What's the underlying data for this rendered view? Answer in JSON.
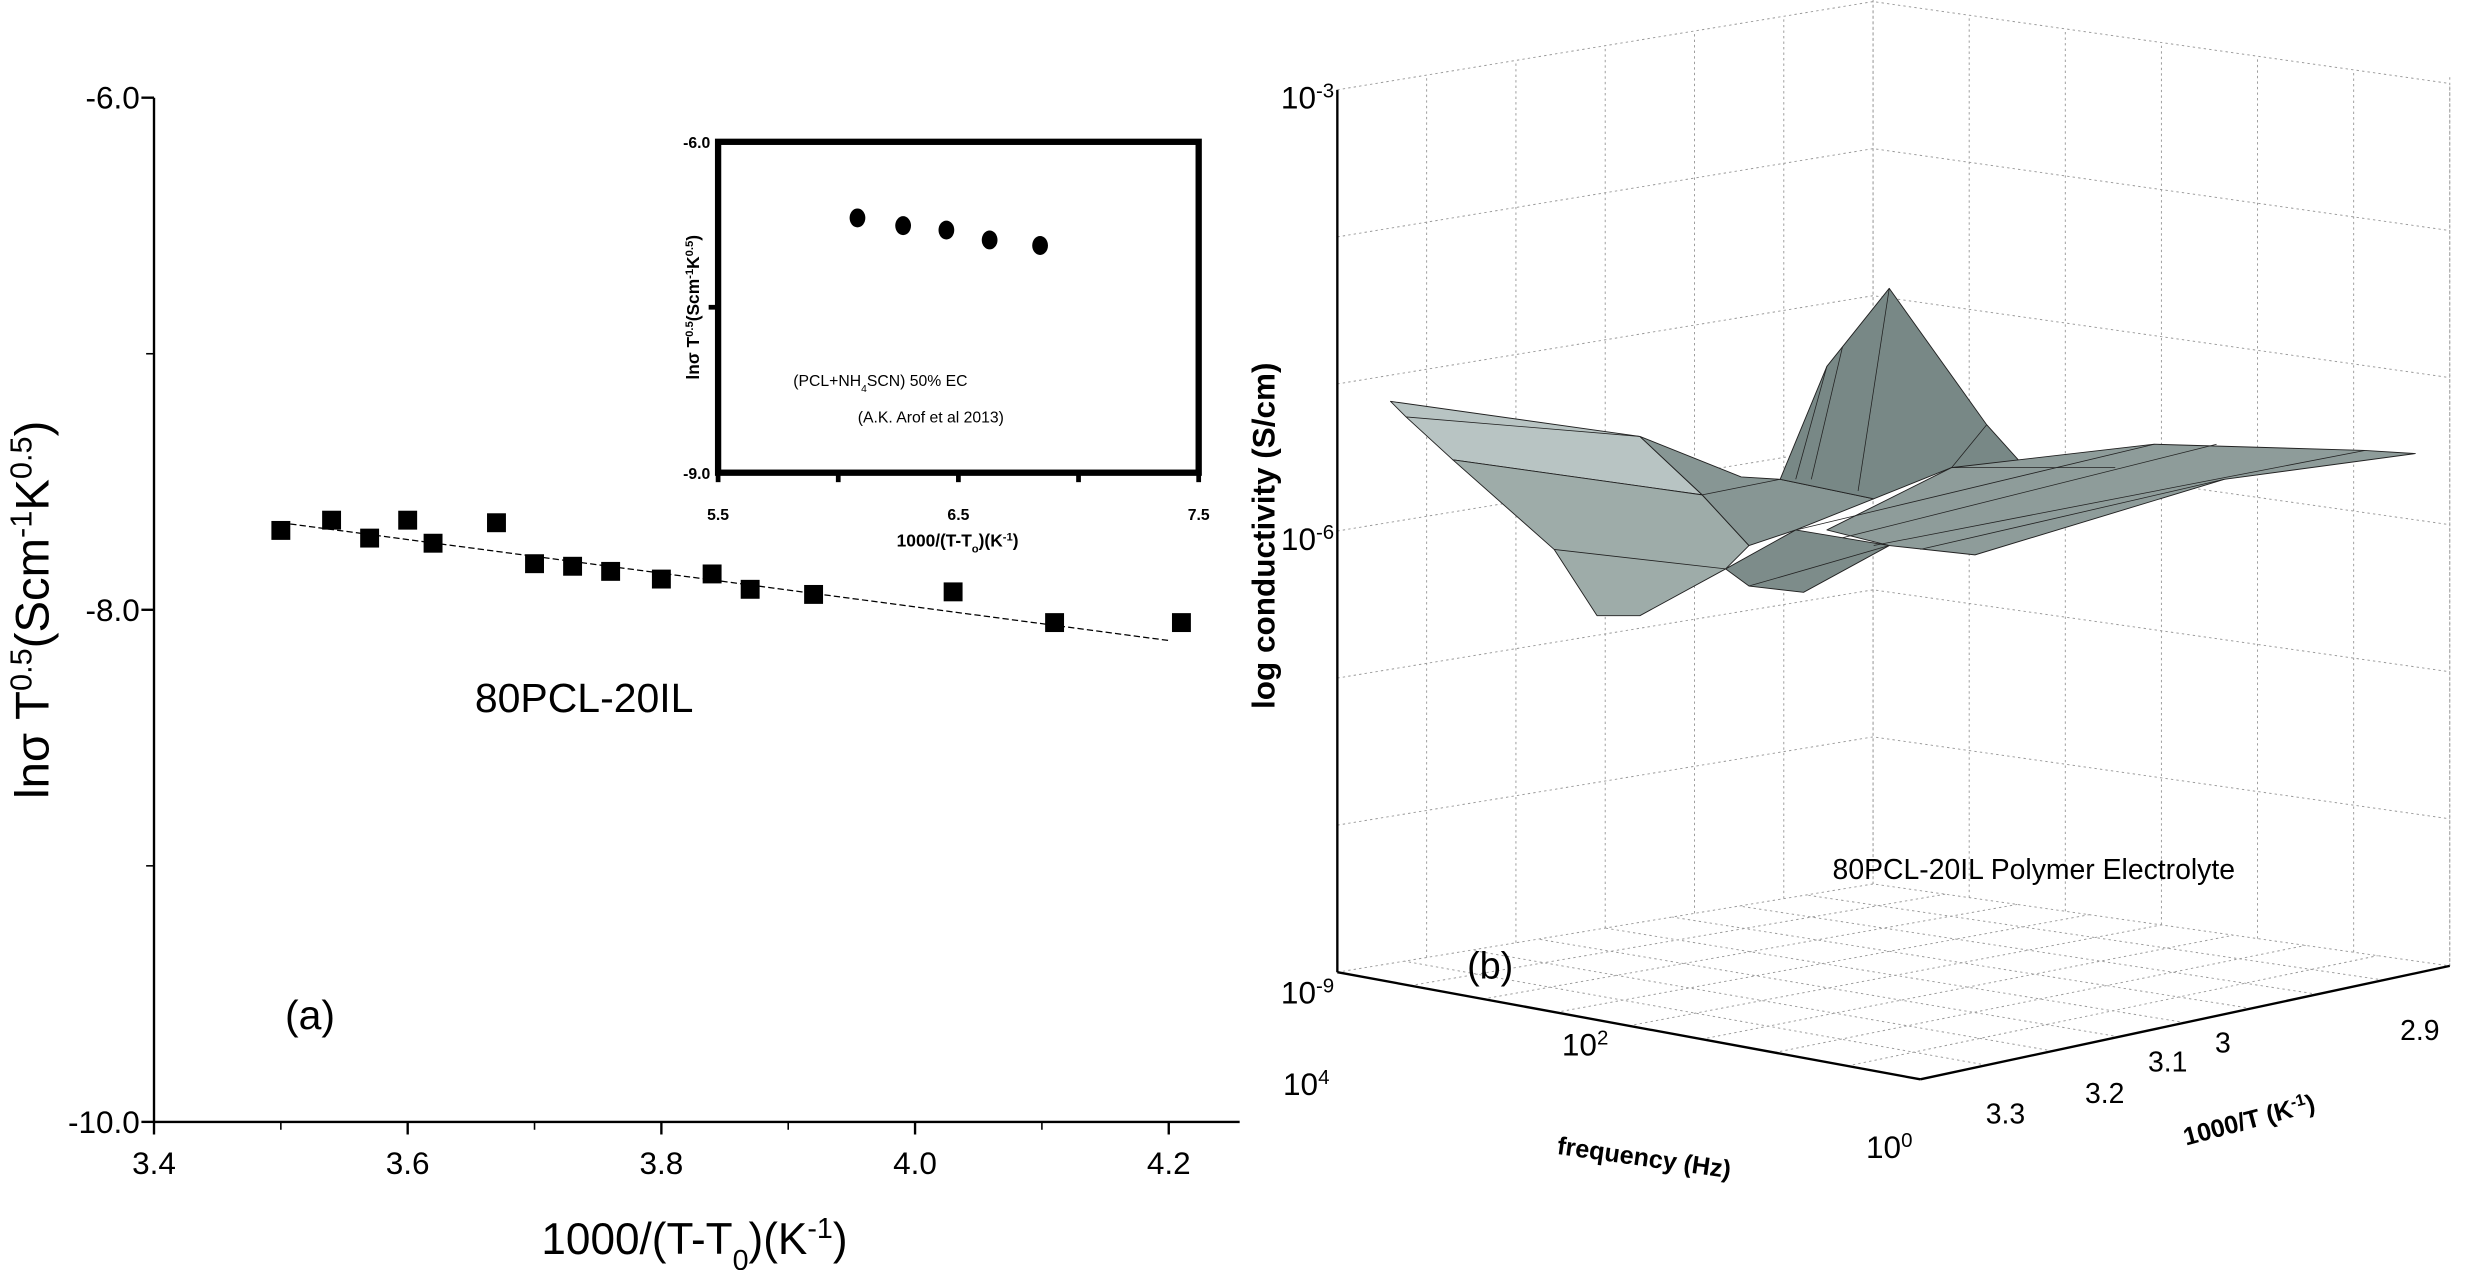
{
  "chart_data": [
    {
      "panel": "(a)",
      "type": "scatter",
      "title": "",
      "annotation": "80PCL-20IL",
      "xlabel": [
        [
          "1000/(T-T",
          ""
        ],
        [
          "0",
          "sub"
        ],
        [
          ")(K",
          ""
        ],
        [
          "-1",
          "sup"
        ],
        [
          ")",
          ""
        ]
      ],
      "ylabel": [
        [
          "lnσ T",
          ""
        ],
        [
          "0.5",
          "sup"
        ],
        [
          "(Scm",
          ""
        ],
        [
          "-1",
          "sup"
        ],
        [
          "K",
          ""
        ],
        [
          "0.5",
          "sup"
        ],
        [
          ")",
          ""
        ]
      ],
      "xlim": [
        3.4,
        4.25
      ],
      "ylim": [
        -10.0,
        -6.0
      ],
      "xticks": [
        "3.4",
        "3.6",
        "3.8",
        "4.0",
        "4.2"
      ],
      "xtick_values": [
        3.4,
        3.6,
        3.8,
        4.0,
        4.2
      ],
      "yticks": [
        "-6.0",
        "-8.0",
        "-10.0"
      ],
      "ytick_values": [
        -6.0,
        -8.0,
        -10.0
      ],
      "grid": false,
      "marker": "square",
      "x": [
        3.5,
        3.54,
        3.57,
        3.6,
        3.62,
        3.67,
        3.7,
        3.73,
        3.76,
        3.8,
        3.84,
        3.87,
        3.92,
        4.03,
        4.11,
        4.21
      ],
      "y": [
        -7.69,
        -7.65,
        -7.72,
        -7.65,
        -7.74,
        -7.66,
        -7.82,
        -7.83,
        -7.85,
        -7.88,
        -7.86,
        -7.92,
        -7.94,
        -7.93,
        -8.05,
        -8.05
      ],
      "fit_line": {
        "style": "dashed",
        "x": [
          3.5,
          4.2
        ],
        "y": [
          -7.66,
          -8.12
        ]
      }
    },
    {
      "panel": "inset",
      "type": "scatter",
      "annotation_lines": [
        [
          [
            "(PCL+NH",
            ""
          ],
          [
            "4",
            "sub"
          ],
          [
            "SCN) 50% EC",
            ""
          ]
        ],
        [
          [
            "(A.K. Arof et al 2013)",
            ""
          ]
        ]
      ],
      "xlabel": [
        [
          "1000/(T-T",
          ""
        ],
        [
          "o",
          "sub"
        ],
        [
          ")(K",
          ""
        ],
        [
          "-1",
          "sup"
        ],
        [
          ")",
          ""
        ]
      ],
      "ylabel": [
        [
          "lnσ T",
          ""
        ],
        [
          "0.5",
          "sup"
        ],
        [
          "(Scm",
          ""
        ],
        [
          "-1",
          "sup"
        ],
        [
          "K",
          ""
        ],
        [
          "0.5",
          "sup"
        ],
        [
          ")",
          ""
        ]
      ],
      "xlim": [
        5.5,
        7.5
      ],
      "ylim": [
        -9.0,
        -6.0
      ],
      "xticks": [
        "5.5",
        "6.5",
        "7.5"
      ],
      "xtick_values": [
        5.5,
        6.5,
        7.5
      ],
      "yticks": [
        "-6.0",
        "-9.0"
      ],
      "ytick_values": [
        -6.0,
        -9.0
      ],
      "marker": "circle",
      "x": [
        6.08,
        6.27,
        6.45,
        6.63,
        6.84
      ],
      "y": [
        -6.69,
        -6.76,
        -6.8,
        -6.89,
        -6.94
      ]
    },
    {
      "panel": "(b)",
      "type": "surface",
      "annotation": "80PCL-20IL Polymer Electrolyte",
      "zlabel": "log conductivity (S/cm)",
      "xlabel": "frequency (Hz)",
      "ylabel": [
        [
          "1000/T (K",
          ""
        ],
        [
          "-1",
          "sup"
        ],
        [
          ")",
          ""
        ]
      ],
      "zticks": [
        [
          [
            "10",
            ""
          ],
          [
            "-3",
            "sup"
          ]
        ],
        [
          [
            "10",
            ""
          ],
          [
            "-6",
            "sup"
          ]
        ],
        [
          [
            "10",
            ""
          ],
          [
            "-9",
            "sup"
          ]
        ]
      ],
      "xticks": [
        [
          [
            "10",
            ""
          ],
          [
            "4",
            "sup"
          ]
        ],
        [
          [
            "10",
            ""
          ],
          [
            "2",
            "sup"
          ]
        ],
        [
          [
            "10",
            ""
          ],
          [
            "0",
            "sup"
          ]
        ]
      ],
      "yticks": [
        "3.3",
        "3.2",
        "3.1",
        "3",
        "2.9"
      ],
      "zlim_log10": [
        -9,
        -3
      ],
      "xlim_log10": [
        0,
        4
      ],
      "ylim": [
        2.9,
        3.3
      ],
      "grid": true,
      "surface_color": "#8e9c9a"
    }
  ]
}
